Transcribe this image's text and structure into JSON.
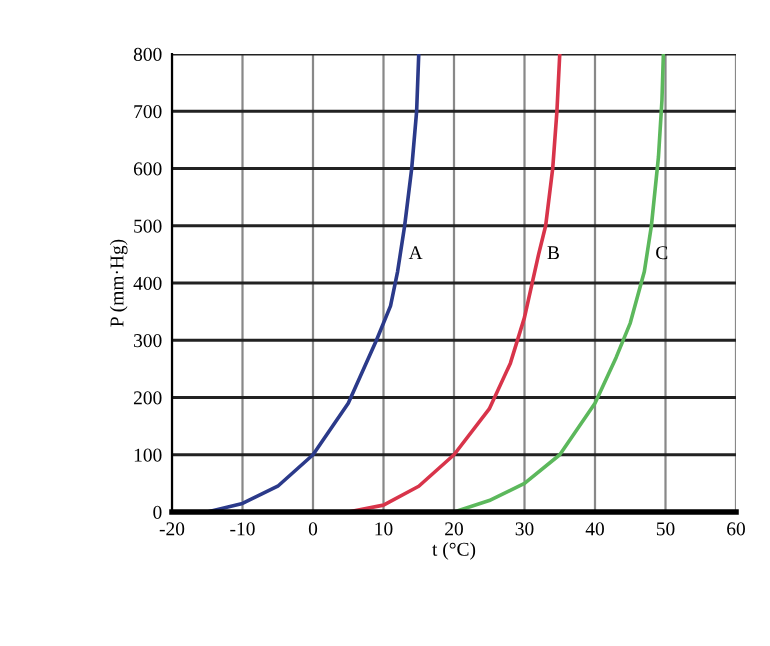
{
  "chart_data": {
    "type": "line",
    "xlabel": "t (°C)",
    "ylabel": "P (mm·Hg)",
    "xlim": [
      -20,
      60
    ],
    "ylim": [
      0,
      800
    ],
    "xticks": [
      -20,
      -10,
      0,
      10,
      20,
      30,
      40,
      50,
      60
    ],
    "yticks": [
      0,
      100,
      200,
      300,
      400,
      500,
      600,
      700,
      800
    ],
    "grid": true,
    "legend": false,
    "marker": "none",
    "line_style": "solid",
    "series": [
      {
        "name": "A",
        "color": "#2b3a8a",
        "x": [
          -15,
          -10,
          -5,
          0,
          5,
          9,
          11,
          12,
          13,
          14,
          14.7,
          15
        ],
        "values": [
          0,
          15,
          45,
          100,
          190,
          300,
          360,
          420,
          500,
          600,
          700,
          800
        ]
      },
      {
        "name": "B",
        "color": "#d8344a",
        "x": [
          5,
          10,
          15,
          20,
          25,
          28,
          30,
          32,
          33,
          34,
          34.6,
          35
        ],
        "values": [
          0,
          12,
          45,
          100,
          180,
          260,
          340,
          450,
          500,
          600,
          700,
          800
        ]
      },
      {
        "name": "C",
        "color": "#5cb85c",
        "x": [
          20,
          25,
          30,
          35,
          40,
          43,
          45,
          47,
          48,
          49,
          49.5,
          49.7
        ],
        "values": [
          0,
          20,
          50,
          100,
          190,
          270,
          330,
          420,
          500,
          620,
          720,
          800
        ]
      }
    ]
  }
}
